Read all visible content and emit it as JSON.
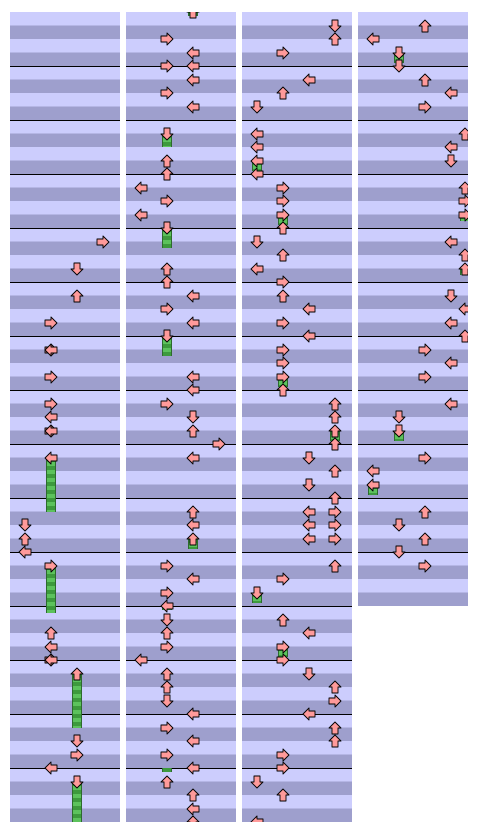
{
  "columns": [
    {
      "name": "column-1",
      "measures": 15,
      "measure_lines": [
        1,
        2,
        3,
        4,
        5,
        6,
        7,
        8,
        9,
        10,
        11,
        12,
        13,
        14
      ],
      "notes": [
        {
          "lane": 3,
          "beat": 16.5,
          "dir": "right"
        },
        {
          "lane": 2,
          "beat": 18.5,
          "dir": "down"
        },
        {
          "lane": 2,
          "beat": 20.5,
          "dir": "up"
        },
        {
          "lane": 1,
          "beat": 22.5,
          "dir": "right"
        },
        {
          "lane": 1,
          "beat": 24.5,
          "dir": "right"
        },
        {
          "lane": 1,
          "beat": 24.5,
          "dir": "left"
        },
        {
          "lane": 1,
          "beat": 26.5,
          "dir": "right"
        },
        {
          "lane": 1,
          "beat": 28.5,
          "dir": "right"
        },
        {
          "lane": 1,
          "beat": 29.5,
          "dir": "left"
        },
        {
          "lane": 1,
          "beat": 30.5,
          "dir": "right"
        },
        {
          "lane": 1,
          "beat": 30.5,
          "dir": "left"
        },
        {
          "lane": 1,
          "beat": 32.5,
          "dir": "left"
        },
        {
          "lane": 0,
          "beat": 37.5,
          "dir": "down"
        },
        {
          "lane": 0,
          "beat": 38.5,
          "dir": "up"
        },
        {
          "lane": 0,
          "beat": 39.5,
          "dir": "left"
        },
        {
          "lane": 1,
          "beat": 40.5,
          "dir": "right"
        },
        {
          "lane": 1,
          "beat": 45.5,
          "dir": "up"
        },
        {
          "lane": 1,
          "beat": 46.5,
          "dir": "left"
        },
        {
          "lane": 1,
          "beat": 47.5,
          "dir": "right"
        },
        {
          "lane": 1,
          "beat": 47.5,
          "dir": "left"
        },
        {
          "lane": 2,
          "beat": 48.5,
          "dir": "up"
        },
        {
          "lane": 2,
          "beat": 53.5,
          "dir": "down"
        },
        {
          "lane": 2,
          "beat": 54.5,
          "dir": "right"
        },
        {
          "lane": 1,
          "beat": 55.5,
          "dir": "left"
        },
        {
          "lane": 2,
          "beat": 56.5,
          "dir": "down"
        }
      ],
      "freezes": [
        {
          "lane": 1,
          "start": 32.5,
          "end": 37.0
        },
        {
          "lane": 1,
          "start": 40.5,
          "end": 44.5
        },
        {
          "lane": 2,
          "start": 48.5,
          "end": 53.0
        },
        {
          "lane": 2,
          "start": 56.5,
          "end": 61.0
        }
      ]
    },
    {
      "name": "column-2",
      "measures": 15,
      "measure_lines": [
        1,
        2,
        3,
        4,
        5,
        6,
        7,
        8,
        9,
        10,
        11,
        12,
        13,
        14
      ],
      "notes": [
        {
          "lane": 2,
          "beat": -0.5,
          "dir": "up"
        },
        {
          "lane": 1,
          "beat": 1.5,
          "dir": "right"
        },
        {
          "lane": 2,
          "beat": 2.5,
          "dir": "left"
        },
        {
          "lane": 1,
          "beat": 3.5,
          "dir": "right"
        },
        {
          "lane": 2,
          "beat": 3.5,
          "dir": "left"
        },
        {
          "lane": 2,
          "beat": 4.5,
          "dir": "left"
        },
        {
          "lane": 1,
          "beat": 5.5,
          "dir": "right"
        },
        {
          "lane": 2,
          "beat": 6.5,
          "dir": "left"
        },
        {
          "lane": 1,
          "beat": 8.5,
          "dir": "down"
        },
        {
          "lane": 1,
          "beat": 10.5,
          "dir": "up"
        },
        {
          "lane": 1,
          "beat": 11.5,
          "dir": "up"
        },
        {
          "lane": 0,
          "beat": 12.5,
          "dir": "left"
        },
        {
          "lane": 1,
          "beat": 13.5,
          "dir": "right"
        },
        {
          "lane": 0,
          "beat": 14.5,
          "dir": "left"
        },
        {
          "lane": 1,
          "beat": 15.5,
          "dir": "down"
        },
        {
          "lane": 1,
          "beat": 18.5,
          "dir": "up"
        },
        {
          "lane": 1,
          "beat": 19.5,
          "dir": "up"
        },
        {
          "lane": 2,
          "beat": 20.5,
          "dir": "left"
        },
        {
          "lane": 1,
          "beat": 21.5,
          "dir": "right"
        },
        {
          "lane": 2,
          "beat": 22.5,
          "dir": "left"
        },
        {
          "lane": 1,
          "beat": 23.5,
          "dir": "down"
        },
        {
          "lane": 2,
          "beat": 26.5,
          "dir": "left"
        },
        {
          "lane": 2,
          "beat": 27.5,
          "dir": "left"
        },
        {
          "lane": 1,
          "beat": 28.5,
          "dir": "right"
        },
        {
          "lane": 2,
          "beat": 29.5,
          "dir": "down"
        },
        {
          "lane": 2,
          "beat": 30.5,
          "dir": "up"
        },
        {
          "lane": 3,
          "beat": 31.5,
          "dir": "right"
        },
        {
          "lane": 2,
          "beat": 32.5,
          "dir": "left"
        },
        {
          "lane": 2,
          "beat": 36.5,
          "dir": "up"
        },
        {
          "lane": 2,
          "beat": 37.5,
          "dir": "left"
        },
        {
          "lane": 2,
          "beat": 38.5,
          "dir": "up"
        },
        {
          "lane": 1,
          "beat": 40.5,
          "dir": "right"
        },
        {
          "lane": 2,
          "beat": 41.5,
          "dir": "left"
        },
        {
          "lane": 1,
          "beat": 42.5,
          "dir": "right"
        },
        {
          "lane": 1,
          "beat": 43.5,
          "dir": "left"
        },
        {
          "lane": 1,
          "beat": 44.5,
          "dir": "down"
        },
        {
          "lane": 1,
          "beat": 45.5,
          "dir": "up"
        },
        {
          "lane": 1,
          "beat": 46.5,
          "dir": "right"
        },
        {
          "lane": 0,
          "beat": 47.5,
          "dir": "left"
        },
        {
          "lane": 1,
          "beat": 48.5,
          "dir": "up"
        },
        {
          "lane": 1,
          "beat": 49.5,
          "dir": "up"
        },
        {
          "lane": 1,
          "beat": 50.5,
          "dir": "down"
        },
        {
          "lane": 2,
          "beat": 51.5,
          "dir": "left"
        },
        {
          "lane": 1,
          "beat": 52.5,
          "dir": "right"
        },
        {
          "lane": 2,
          "beat": 53.5,
          "dir": "left"
        },
        {
          "lane": 1,
          "beat": 54.5,
          "dir": "right"
        },
        {
          "lane": 2,
          "beat": 55.5,
          "dir": "left"
        },
        {
          "lane": 1,
          "beat": 56.5,
          "dir": "up"
        },
        {
          "lane": 2,
          "beat": 57.5,
          "dir": "up"
        },
        {
          "lane": 2,
          "beat": 58.5,
          "dir": "left"
        },
        {
          "lane": 2,
          "beat": 59.5,
          "dir": "up"
        },
        {
          "lane": 2,
          "beat": 60.5,
          "dir": "up"
        }
      ],
      "freezes": [
        {
          "lane": 2,
          "start": -0.5,
          "end": 0.2
        },
        {
          "lane": 1,
          "start": 8.5,
          "end": 10.0
        },
        {
          "lane": 1,
          "start": 15.5,
          "end": 17.5
        },
        {
          "lane": 1,
          "start": 23.5,
          "end": 25.5
        },
        {
          "lane": 2,
          "start": 38.5,
          "end": 39.8
        },
        {
          "lane": 1,
          "start": 43.5,
          "end": 44.2
        },
        {
          "lane": 1,
          "start": 55.5,
          "end": 56.2
        },
        {
          "lane": 2,
          "start": 59.5,
          "end": 60.5
        }
      ]
    },
    {
      "name": "column-3",
      "measures": 15,
      "measure_lines": [
        1,
        2,
        3,
        4,
        5,
        6,
        7,
        8,
        9,
        10,
        11,
        12,
        13,
        14
      ],
      "notes": [
        {
          "lane": 3,
          "beat": 0.5,
          "dir": "down"
        },
        {
          "lane": 3,
          "beat": 1.5,
          "dir": "up"
        },
        {
          "lane": 1,
          "beat": 2.5,
          "dir": "right"
        },
        {
          "lane": 2,
          "beat": 4.5,
          "dir": "left"
        },
        {
          "lane": 1,
          "beat": 5.5,
          "dir": "up"
        },
        {
          "lane": 0,
          "beat": 6.5,
          "dir": "down"
        },
        {
          "lane": 0,
          "beat": 8.5,
          "dir": "left"
        },
        {
          "lane": 0,
          "beat": 9.5,
          "dir": "left"
        },
        {
          "lane": 0,
          "beat": 10.5,
          "dir": "left"
        },
        {
          "lane": 0,
          "beat": 11.5,
          "dir": "left"
        },
        {
          "lane": 1,
          "beat": 12.5,
          "dir": "right"
        },
        {
          "lane": 1,
          "beat": 13.5,
          "dir": "right"
        },
        {
          "lane": 1,
          "beat": 14.5,
          "dir": "right"
        },
        {
          "lane": 1,
          "beat": 15.5,
          "dir": "up"
        },
        {
          "lane": 0,
          "beat": 16.5,
          "dir": "down"
        },
        {
          "lane": 1,
          "beat": 17.5,
          "dir": "up"
        },
        {
          "lane": 0,
          "beat": 18.5,
          "dir": "left"
        },
        {
          "lane": 1,
          "beat": 19.5,
          "dir": "right"
        },
        {
          "lane": 1,
          "beat": 20.5,
          "dir": "up"
        },
        {
          "lane": 2,
          "beat": 21.5,
          "dir": "left"
        },
        {
          "lane": 1,
          "beat": 22.5,
          "dir": "right"
        },
        {
          "lane": 2,
          "beat": 23.5,
          "dir": "left"
        },
        {
          "lane": 1,
          "beat": 24.5,
          "dir": "right"
        },
        {
          "lane": 1,
          "beat": 25.5,
          "dir": "right"
        },
        {
          "lane": 1,
          "beat": 26.5,
          "dir": "right"
        },
        {
          "lane": 1,
          "beat": 27.5,
          "dir": "up"
        },
        {
          "lane": 3,
          "beat": 28.5,
          "dir": "up"
        },
        {
          "lane": 3,
          "beat": 29.5,
          "dir": "up"
        },
        {
          "lane": 3,
          "beat": 30.5,
          "dir": "up"
        },
        {
          "lane": 3,
          "beat": 31.5,
          "dir": "up"
        },
        {
          "lane": 2,
          "beat": 32.5,
          "dir": "down"
        },
        {
          "lane": 3,
          "beat": 33.5,
          "dir": "up"
        },
        {
          "lane": 2,
          "beat": 34.5,
          "dir": "down"
        },
        {
          "lane": 3,
          "beat": 35.5,
          "dir": "up"
        },
        {
          "lane": 2,
          "beat": 36.5,
          "dir": "left"
        },
        {
          "lane": 3,
          "beat": 36.5,
          "dir": "right"
        },
        {
          "lane": 2,
          "beat": 37.5,
          "dir": "left"
        },
        {
          "lane": 3,
          "beat": 37.5,
          "dir": "right"
        },
        {
          "lane": 2,
          "beat": 38.5,
          "dir": "left"
        },
        {
          "lane": 3,
          "beat": 38.5,
          "dir": "right"
        },
        {
          "lane": 3,
          "beat": 40.5,
          "dir": "up"
        },
        {
          "lane": 1,
          "beat": 41.5,
          "dir": "right"
        },
        {
          "lane": 0,
          "beat": 42.5,
          "dir": "down"
        },
        {
          "lane": 1,
          "beat": 44.5,
          "dir": "up"
        },
        {
          "lane": 2,
          "beat": 45.5,
          "dir": "left"
        },
        {
          "lane": 1,
          "beat": 46.5,
          "dir": "right"
        },
        {
          "lane": 1,
          "beat": 47.5,
          "dir": "right"
        },
        {
          "lane": 2,
          "beat": 48.5,
          "dir": "down"
        },
        {
          "lane": 3,
          "beat": 49.5,
          "dir": "up"
        },
        {
          "lane": 3,
          "beat": 50.5,
          "dir": "right"
        },
        {
          "lane": 2,
          "beat": 51.5,
          "dir": "left"
        },
        {
          "lane": 3,
          "beat": 52.5,
          "dir": "up"
        },
        {
          "lane": 3,
          "beat": 53.5,
          "dir": "up"
        },
        {
          "lane": 1,
          "beat": 54.5,
          "dir": "right"
        },
        {
          "lane": 1,
          "beat": 55.5,
          "dir": "right"
        },
        {
          "lane": 0,
          "beat": 56.5,
          "dir": "down"
        },
        {
          "lane": 1,
          "beat": 57.5,
          "dir": "up"
        },
        {
          "lane": 0,
          "beat": 59.5,
          "dir": "left"
        },
        {
          "lane": 0,
          "beat": 60.5,
          "dir": "left"
        }
      ],
      "freezes": [
        {
          "lane": 0,
          "start": 10.5,
          "end": 11.8
        },
        {
          "lane": 1,
          "start": 14.5,
          "end": 15.8
        },
        {
          "lane": 1,
          "start": 26.5,
          "end": 27.8
        },
        {
          "lane": 3,
          "start": 30.5,
          "end": 31.8
        },
        {
          "lane": 0,
          "start": 42.5,
          "end": 43.8
        },
        {
          "lane": 1,
          "start": 46.5,
          "end": 47.8
        },
        {
          "lane": 0,
          "start": 59.5,
          "end": 60.5
        }
      ]
    },
    {
      "name": "column-4",
      "measures": 11,
      "measure_lines": [
        1,
        2,
        3,
        4,
        5,
        6,
        7,
        8,
        9,
        10
      ],
      "notes": [
        {
          "lane": 2,
          "beat": 0.5,
          "dir": "up"
        },
        {
          "lane": 0,
          "beat": 1.5,
          "dir": "left"
        },
        {
          "lane": 1,
          "beat": 2.5,
          "dir": "down"
        },
        {
          "lane": 1,
          "beat": 3.5,
          "dir": "down"
        },
        {
          "lane": 2,
          "beat": 4.5,
          "dir": "up"
        },
        {
          "lane": 3,
          "beat": 5.5,
          "dir": "left"
        },
        {
          "lane": 2,
          "beat": 6.5,
          "dir": "right"
        },
        {
          "lane": 4,
          "beat": 8.5,
          "dir": "up"
        },
        {
          "lane": 3,
          "beat": 9.5,
          "dir": "left"
        },
        {
          "lane": 3,
          "beat": 10.5,
          "dir": "down"
        },
        {
          "lane": 4,
          "beat": 12.5,
          "dir": "up"
        },
        {
          "lane": 5,
          "beat": 13.5,
          "dir": "right"
        },
        {
          "lane": 5,
          "beat": 14.5,
          "dir": "right"
        },
        {
          "lane": 3,
          "beat": 16.5,
          "dir": "left"
        },
        {
          "lane": 4,
          "beat": 17.5,
          "dir": "up"
        },
        {
          "lane": 4,
          "beat": 18.5,
          "dir": "up"
        },
        {
          "lane": 3,
          "beat": 20.5,
          "dir": "down"
        },
        {
          "lane": 4,
          "beat": 21.5,
          "dir": "left"
        },
        {
          "lane": 3,
          "beat": 22.5,
          "dir": "left"
        },
        {
          "lane": 4,
          "beat": 23.5,
          "dir": "up"
        },
        {
          "lane": 2,
          "beat": 24.5,
          "dir": "right"
        },
        {
          "lane": 3,
          "beat": 25.5,
          "dir": "left"
        },
        {
          "lane": 2,
          "beat": 26.5,
          "dir": "right"
        },
        {
          "lane": 3,
          "beat": 28.5,
          "dir": "left"
        },
        {
          "lane": 1,
          "beat": 29.5,
          "dir": "down"
        },
        {
          "lane": 1,
          "beat": 30.5,
          "dir": "down"
        },
        {
          "lane": 2,
          "beat": 32.5,
          "dir": "right"
        },
        {
          "lane": 0,
          "beat": 33.5,
          "dir": "left"
        },
        {
          "lane": 0,
          "beat": 34.5,
          "dir": "left"
        },
        {
          "lane": 2,
          "beat": 36.5,
          "dir": "up"
        },
        {
          "lane": 1,
          "beat": 37.5,
          "dir": "down"
        },
        {
          "lane": 2,
          "beat": 38.5,
          "dir": "up"
        },
        {
          "lane": 1,
          "beat": 39.5,
          "dir": "down"
        },
        {
          "lane": 2,
          "beat": 40.5,
          "dir": "right"
        }
      ],
      "freezes": [
        {
          "lane": 1,
          "start": 2.5,
          "end": 3.8
        },
        {
          "lane": 5,
          "start": 14.5,
          "end": 15.5
        },
        {
          "lane": 4,
          "start": 18.5,
          "end": 19.5
        },
        {
          "lane": 1,
          "start": 30.5,
          "end": 31.8
        },
        {
          "lane": 0,
          "start": 34.5,
          "end": 35.8
        }
      ]
    }
  ],
  "colors": {
    "lane_light": "#cccdfd",
    "lane_dark": "#9e9fcd",
    "arrow_fill": "#ff9a9a",
    "arrow_stroke": "#000000",
    "freeze_green": "#3d9a3d"
  }
}
